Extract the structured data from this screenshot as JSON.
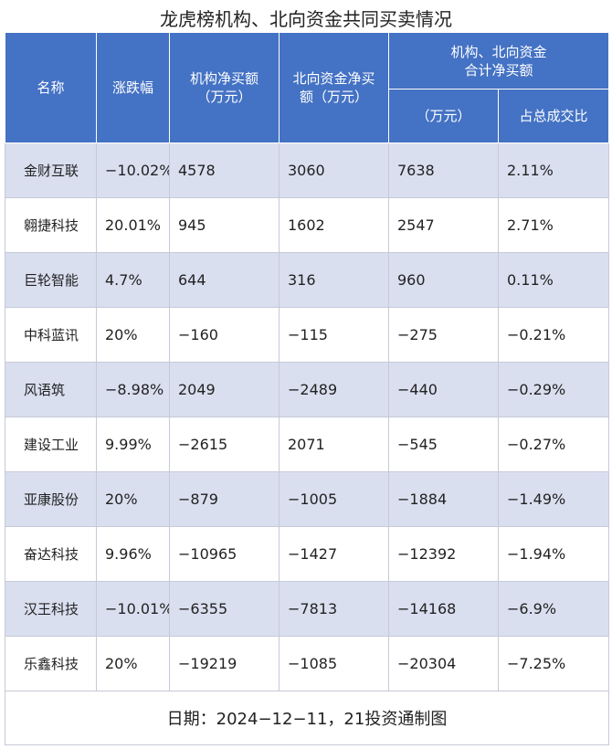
{
  "title": "龙虎榜机构、北向资金共同买卖情况",
  "headers": {
    "name": "名称",
    "change": "涨跌幅",
    "inst_net_line1": "机构净买额",
    "inst_net_line2": "（万元）",
    "north_net_line1": "北向资金净买",
    "north_net_line2": "额（万元）",
    "combined_line1": "机构、北向资金",
    "combined_line2": "合计净买额",
    "combined_unit": "（万元）",
    "share": "占总成交比"
  },
  "rows": [
    {
      "name": "金财互联",
      "change": "−10.02%",
      "inst": "4578",
      "north": "3060",
      "total": "7638",
      "share": "2.11%"
    },
    {
      "name": "翱捷科技",
      "change": "20.01%",
      "inst": "945",
      "north": "1602",
      "total": "2547",
      "share": "2.71%"
    },
    {
      "name": "巨轮智能",
      "change": "4.7%",
      "inst": "644",
      "north": "316",
      "total": "960",
      "share": "0.11%"
    },
    {
      "name": "中科蓝讯",
      "change": "20%",
      "inst": "−160",
      "north": "−115",
      "total": "−275",
      "share": "−0.21%"
    },
    {
      "name": "风语筑",
      "change": "−8.98%",
      "inst": "2049",
      "north": "−2489",
      "total": "−440",
      "share": "−0.29%"
    },
    {
      "name": "建设工业",
      "change": "9.99%",
      "inst": "−2615",
      "north": "2071",
      "total": "−545",
      "share": "−0.27%"
    },
    {
      "name": "亚康股份",
      "change": "20%",
      "inst": "−879",
      "north": "−1005",
      "total": "−1884",
      "share": "−1.49%"
    },
    {
      "name": "奋达科技",
      "change": "9.96%",
      "inst": "−10965",
      "north": "−1427",
      "total": "−12392",
      "share": "−1.94%"
    },
    {
      "name": "汉王科技",
      "change": "−10.01%",
      "inst": "−6355",
      "north": "−7813",
      "total": "−14168",
      "share": "−6.9%"
    },
    {
      "name": "乐鑫科技",
      "change": "20%",
      "inst": "−19219",
      "north": "−1085",
      "total": "−20304",
      "share": "−7.25%"
    }
  ],
  "footer": "日期：2024−12−11，21投资通制图",
  "colors": {
    "header_bg": "#4472c4",
    "band_bg": "#dadff0"
  }
}
